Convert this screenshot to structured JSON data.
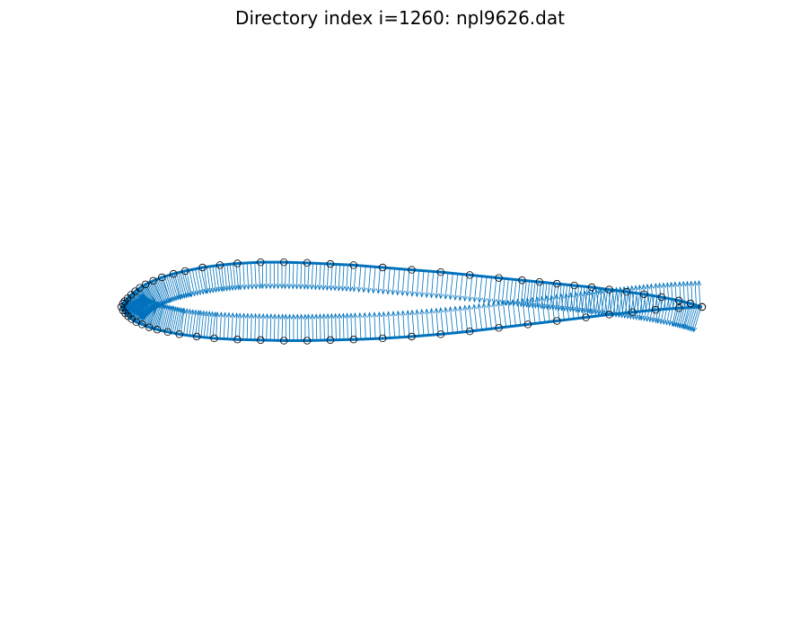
{
  "title": "Directory index i=1260: npl9626.dat",
  "colors": {
    "airfoil": "#0072BD",
    "normals": "#0072BD",
    "markers": "#000000",
    "background": "#ffffff"
  },
  "chart_data": {
    "type": "scatter",
    "title": "Directory index i=1260: npl9626.dat",
    "axes_visible": false,
    "grid": false,
    "legend": "none",
    "xlim": [
      -0.02,
      1.02
    ],
    "ylim": [
      -0.45,
      0.45
    ],
    "airfoil": {
      "upper": [
        [
          1.0,
          0.0
        ],
        [
          0.98,
          0.006
        ],
        [
          0.96,
          0.011
        ],
        [
          0.93,
          0.017
        ],
        [
          0.9,
          0.022
        ],
        [
          0.87,
          0.026
        ],
        [
          0.84,
          0.03
        ],
        [
          0.81,
          0.034
        ],
        [
          0.78,
          0.037
        ],
        [
          0.75,
          0.04
        ],
        [
          0.72,
          0.043
        ],
        [
          0.69,
          0.046
        ],
        [
          0.65,
          0.05
        ],
        [
          0.6,
          0.055
        ],
        [
          0.55,
          0.06
        ],
        [
          0.5,
          0.064
        ],
        [
          0.45,
          0.068
        ],
        [
          0.4,
          0.072
        ],
        [
          0.36,
          0.074
        ],
        [
          0.32,
          0.076
        ],
        [
          0.28,
          0.077
        ],
        [
          0.24,
          0.077
        ],
        [
          0.2,
          0.075
        ],
        [
          0.17,
          0.072
        ],
        [
          0.14,
          0.068
        ],
        [
          0.11,
          0.062
        ],
        [
          0.09,
          0.057
        ],
        [
          0.07,
          0.051
        ],
        [
          0.055,
          0.045
        ],
        [
          0.042,
          0.039
        ],
        [
          0.032,
          0.033
        ],
        [
          0.024,
          0.027
        ],
        [
          0.017,
          0.021
        ],
        [
          0.011,
          0.015
        ],
        [
          0.006,
          0.01
        ],
        [
          0.003,
          0.006
        ],
        [
          0.0,
          0.0
        ]
      ],
      "lower": [
        [
          0.003,
          -0.006
        ],
        [
          0.007,
          -0.011
        ],
        [
          0.012,
          -0.016
        ],
        [
          0.018,
          -0.021
        ],
        [
          0.026,
          -0.026
        ],
        [
          0.036,
          -0.03
        ],
        [
          0.048,
          -0.035
        ],
        [
          0.062,
          -0.039
        ],
        [
          0.08,
          -0.043
        ],
        [
          0.1,
          -0.047
        ],
        [
          0.13,
          -0.051
        ],
        [
          0.16,
          -0.054
        ],
        [
          0.2,
          -0.056
        ],
        [
          0.24,
          -0.057
        ],
        [
          0.28,
          -0.058
        ],
        [
          0.32,
          -0.058
        ],
        [
          0.36,
          -0.057
        ],
        [
          0.4,
          -0.056
        ],
        [
          0.45,
          -0.054
        ],
        [
          0.5,
          -0.051
        ],
        [
          0.55,
          -0.047
        ],
        [
          0.6,
          -0.042
        ],
        [
          0.65,
          -0.036
        ],
        [
          0.7,
          -0.03
        ],
        [
          0.75,
          -0.024
        ],
        [
          0.8,
          -0.018
        ],
        [
          0.84,
          -0.013
        ],
        [
          0.88,
          -0.009
        ],
        [
          0.92,
          -0.005
        ],
        [
          0.96,
          -0.002
        ],
        [
          1.0,
          0.0
        ]
      ]
    },
    "normal_vectors": {
      "samples_per_segment": 6,
      "relative_length": 0.045
    }
  }
}
